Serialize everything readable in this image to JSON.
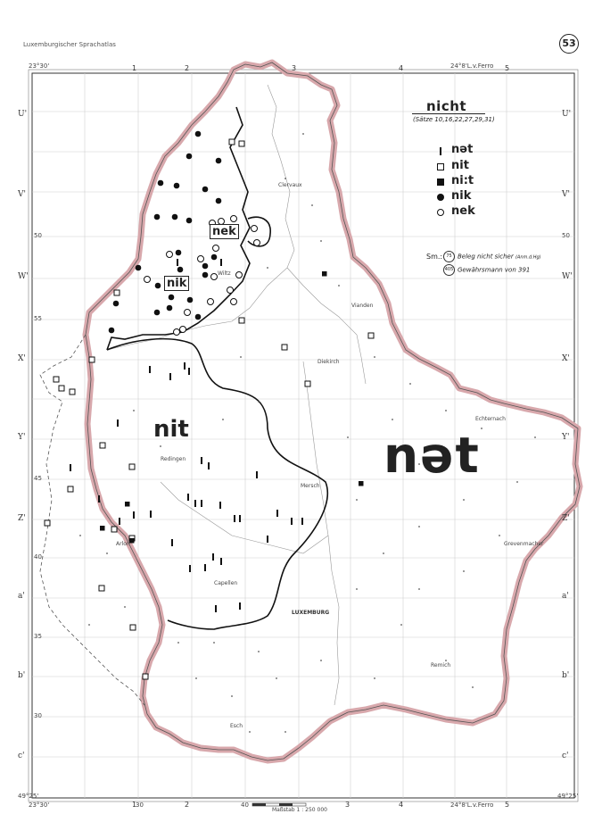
{
  "atlas_title": "Luxemburgischer Sprachatlas",
  "page_number": "53",
  "coords": {
    "top_left": "23°30'",
    "top_right": "24°8'L.v.Ferro",
    "bottom_left": "23°30'",
    "bottom_right": "24°8'L.v.Ferro",
    "lat_bottom_left": "49°25'",
    "lat_bottom_right": "49°25'"
  },
  "grid_cols": [
    "1",
    "2",
    "3",
    "4",
    "5"
  ],
  "grid_cols_bottom": [
    "30",
    "40"
  ],
  "side_labels": [
    "U'",
    "V'",
    "W'",
    "X'",
    "Y'",
    "Z'",
    "a'",
    "b'",
    "c'"
  ],
  "lat_labels": [
    "50",
    "50",
    "45",
    "40",
    "35",
    "55",
    "30"
  ],
  "legend": {
    "title": "nicht",
    "subtitle": "(Sätze 10,16,22,27,29,31)",
    "items": [
      {
        "symbol": "bar",
        "label": "nət"
      },
      {
        "symbol": "open-square",
        "label": "nit"
      },
      {
        "symbol": "filled-square",
        "label": "ni:t"
      },
      {
        "symbol": "filled-circle",
        "label": "nik"
      },
      {
        "symbol": "open-circle",
        "label": "nek"
      }
    ],
    "sm_label": "Sm.:",
    "notes": [
      {
        "mark": "75",
        "text": "Beleg nicht sicher",
        "small": "(Anm.d.Hg)"
      },
      {
        "mark": "405",
        "text": "Gewährsmann von 391"
      }
    ]
  },
  "area_labels": {
    "net": "nət",
    "nit": "nit",
    "nek": "nek",
    "nik": "nik"
  },
  "places": [
    "Clervaux",
    "Wiltz",
    "Vianden",
    "Diekirch",
    "Echternach",
    "Redingen",
    "Mersch",
    "Grevenmacher",
    "Capellen",
    "LUXEMBURG",
    "Remich",
    "Esch",
    "Arlon"
  ],
  "scale_text": "Maßstab 1 : 250 000",
  "colors": {
    "border_band": "#d8a8ac",
    "ink": "#222222",
    "grid": "#cfcfcf"
  }
}
